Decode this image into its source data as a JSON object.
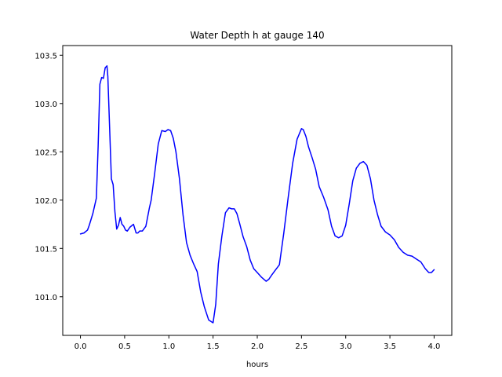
{
  "chart_data": {
    "type": "line",
    "title": "Water Depth h at gauge 140",
    "xlabel": "hours",
    "ylabel": "",
    "xlim": [
      -0.2,
      4.2
    ],
    "ylim": [
      100.6,
      103.6
    ],
    "xticks": [
      0.0,
      0.5,
      1.0,
      1.5,
      2.0,
      2.5,
      3.0,
      3.5,
      4.0
    ],
    "xtick_labels": [
      "0.0",
      "0.5",
      "1.0",
      "1.5",
      "2.0",
      "2.5",
      "3.0",
      "3.5",
      "4.0"
    ],
    "yticks": [
      101.0,
      101.5,
      102.0,
      102.5,
      103.0,
      103.5
    ],
    "ytick_labels": [
      "101.0",
      "101.5",
      "102.0",
      "102.5",
      "103.0",
      "103.5"
    ],
    "grid": false,
    "series": [
      {
        "color": "#0000ff",
        "x": [
          0.0,
          0.04,
          0.08,
          0.1,
          0.14,
          0.18,
          0.2,
          0.22,
          0.24,
          0.26,
          0.28,
          0.3,
          0.31,
          0.33,
          0.35,
          0.37,
          0.39,
          0.41,
          0.43,
          0.45,
          0.47,
          0.49,
          0.51,
          0.53,
          0.56,
          0.6,
          0.63,
          0.65,
          0.67,
          0.7,
          0.74,
          0.78,
          0.8,
          0.84,
          0.88,
          0.92,
          0.96,
          0.99,
          1.02,
          1.05,
          1.08,
          1.12,
          1.16,
          1.2,
          1.24,
          1.28,
          1.32,
          1.36,
          1.4,
          1.45,
          1.5,
          1.53,
          1.56,
          1.6,
          1.64,
          1.68,
          1.71,
          1.74,
          1.77,
          1.8,
          1.84,
          1.88,
          1.92,
          1.96,
          2.0,
          2.05,
          2.1,
          2.13,
          2.16,
          2.2,
          2.25,
          2.3,
          2.35,
          2.4,
          2.45,
          2.5,
          2.52,
          2.55,
          2.58,
          2.62,
          2.66,
          2.7,
          2.75,
          2.8,
          2.84,
          2.88,
          2.92,
          2.96,
          3.0,
          3.04,
          3.08,
          3.12,
          3.16,
          3.2,
          3.24,
          3.28,
          3.32,
          3.36,
          3.4,
          3.45,
          3.5,
          3.55,
          3.6,
          3.65,
          3.7,
          3.75,
          3.8,
          3.85,
          3.9,
          3.94,
          3.97,
          4.0
        ],
        "y": [
          101.65,
          101.66,
          101.69,
          101.74,
          101.86,
          102.02,
          102.55,
          103.2,
          103.27,
          103.26,
          103.37,
          103.39,
          103.28,
          102.75,
          102.22,
          102.16,
          101.88,
          101.7,
          101.74,
          101.82,
          101.75,
          101.73,
          101.69,
          101.68,
          101.72,
          101.75,
          101.66,
          101.66,
          101.68,
          101.68,
          101.73,
          101.92,
          102.0,
          102.28,
          102.58,
          102.72,
          102.71,
          102.73,
          102.72,
          102.64,
          102.5,
          102.22,
          101.85,
          101.56,
          101.43,
          101.34,
          101.26,
          101.05,
          100.9,
          100.76,
          100.73,
          100.92,
          101.34,
          101.63,
          101.87,
          101.92,
          101.91,
          101.91,
          101.86,
          101.76,
          101.62,
          101.52,
          101.38,
          101.29,
          101.25,
          101.2,
          101.16,
          101.18,
          101.22,
          101.27,
          101.33,
          101.66,
          102.03,
          102.38,
          102.63,
          102.74,
          102.73,
          102.66,
          102.55,
          102.44,
          102.32,
          102.14,
          102.03,
          101.9,
          101.73,
          101.63,
          101.61,
          101.63,
          101.74,
          101.96,
          102.2,
          102.33,
          102.38,
          102.4,
          102.36,
          102.22,
          102.0,
          101.85,
          101.73,
          101.67,
          101.64,
          101.59,
          101.51,
          101.46,
          101.43,
          101.42,
          101.39,
          101.36,
          101.29,
          101.25,
          101.25,
          101.28
        ]
      }
    ]
  }
}
